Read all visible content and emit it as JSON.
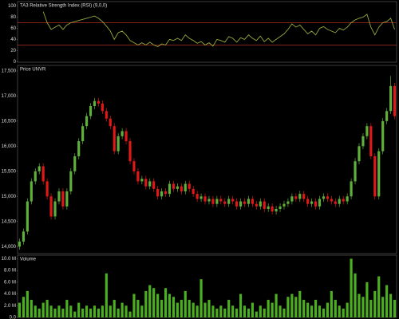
{
  "chart_data": [
    {
      "type": "line",
      "title": "TA3 Relative Strength Index (RSI) (9,0,0)",
      "color": "#9aa83a",
      "ref_color": "#b03020",
      "ylim": [
        -1,
        108
      ],
      "yticks": [
        0,
        20,
        40,
        60,
        80,
        100
      ],
      "ref_lines": [
        30,
        70
      ],
      "values": [
        null,
        null,
        null,
        null,
        null,
        null,
        90,
        70,
        58,
        62,
        66,
        58,
        66,
        70,
        72,
        74,
        76,
        78,
        80,
        82,
        78,
        72,
        64,
        55,
        40,
        52,
        55,
        48,
        38,
        34,
        30,
        34,
        30,
        35,
        30,
        27,
        32,
        30,
        40,
        38,
        42,
        38,
        48,
        42,
        38,
        33,
        36,
        30,
        34,
        28,
        40,
        38,
        35,
        45,
        42,
        35,
        43,
        40,
        48,
        42,
        38,
        46,
        36,
        42,
        35,
        40,
        45,
        50,
        58,
        68,
        62,
        66,
        58,
        50,
        55,
        48,
        60,
        63,
        58,
        55,
        52,
        60,
        57,
        62,
        70,
        75,
        78,
        80,
        85,
        62,
        48,
        62,
        70,
        72,
        78,
        58
      ]
    },
    {
      "type": "candlestick",
      "title": "Price UNVR",
      "up_color": "#5fb03a",
      "down_color": "#e01818",
      "ylim": [
        13860,
        17610
      ],
      "yticks": [
        {
          "value": 14000,
          "label": "14,000"
        },
        {
          "value": 14500,
          "label": "14,500"
        },
        {
          "value": 15000,
          "label": "15,000"
        },
        {
          "value": 15500,
          "label": "15,500"
        },
        {
          "value": 16000,
          "label": "16,000"
        },
        {
          "value": 16500,
          "label": "16,500"
        },
        {
          "value": 17000,
          "label": "17,000"
        },
        {
          "value": 17500,
          "label": "17,500"
        }
      ],
      "open": [
        14000,
        14100,
        14300,
        14900,
        15300,
        15500,
        15600,
        15300,
        15000,
        14600,
        14900,
        15100,
        14800,
        15100,
        15500,
        15800,
        16100,
        16400,
        16600,
        16800,
        16900,
        16850,
        16700,
        16550,
        16400,
        15900,
        16200,
        16300,
        16100,
        15700,
        15500,
        15300,
        15350,
        15200,
        15300,
        15150,
        15000,
        15100,
        15050,
        15250,
        15150,
        15200,
        15100,
        15250,
        15150,
        15050,
        14950,
        15000,
        14900,
        14950,
        14850,
        14950,
        14900,
        14850,
        14950,
        14900,
        14800,
        14900,
        14850,
        14950,
        14850,
        14800,
        14900,
        14750,
        14800,
        14700,
        14750,
        14800,
        14850,
        14900,
        15000,
        14950,
        15050,
        14950,
        14850,
        14900,
        14800,
        14950,
        15000,
        14950,
        14900,
        14850,
        14950,
        14900,
        15000,
        15300,
        15700,
        16000,
        16200,
        16400,
        15800,
        15000,
        15900,
        16500,
        16700,
        17200
      ],
      "high": [
        14160,
        14360,
        14960,
        15360,
        15560,
        15660,
        15660,
        15360,
        15060,
        14960,
        15160,
        15160,
        15160,
        15560,
        15860,
        16160,
        16460,
        16660,
        16860,
        16960,
        16960,
        16910,
        16760,
        16610,
        16460,
        16260,
        16360,
        16360,
        16160,
        15760,
        15560,
        15410,
        15410,
        15360,
        15360,
        15210,
        15160,
        15160,
        15310,
        15310,
        15260,
        15260,
        15310,
        15310,
        15210,
        15110,
        15060,
        15060,
        15010,
        15010,
        15010,
        15010,
        14960,
        15010,
        15010,
        14960,
        14960,
        14960,
        15010,
        15010,
        14910,
        14960,
        14960,
        14860,
        14860,
        14810,
        14860,
        14910,
        14960,
        15060,
        15060,
        15110,
        15110,
        15010,
        14960,
        14960,
        15010,
        15060,
        15060,
        15010,
        14960,
        15010,
        15010,
        15060,
        15360,
        15760,
        16060,
        16260,
        16460,
        16460,
        15860,
        15960,
        16560,
        16760,
        17400,
        17260
      ],
      "low": [
        13940,
        14040,
        14240,
        14840,
        15240,
        15440,
        15240,
        14940,
        14540,
        14540,
        14840,
        14740,
        14740,
        15040,
        15440,
        15740,
        16040,
        16340,
        16540,
        16740,
        16790,
        16640,
        16490,
        16340,
        15840,
        15840,
        16140,
        16040,
        15640,
        15440,
        15240,
        15240,
        15140,
        15140,
        15090,
        14940,
        14940,
        14990,
        14990,
        15090,
        15090,
        15040,
        15040,
        15090,
        14990,
        14890,
        14890,
        14840,
        14840,
        14790,
        14790,
        14840,
        14790,
        14790,
        14840,
        14740,
        14740,
        14790,
        14790,
        14790,
        14740,
        14740,
        14690,
        14690,
        14640,
        14640,
        14690,
        14740,
        14790,
        14840,
        14890,
        14890,
        14890,
        14790,
        14790,
        14740,
        14740,
        14890,
        14890,
        14840,
        14790,
        14790,
        14840,
        14840,
        14940,
        15240,
        15640,
        15940,
        16140,
        15740,
        14940,
        14940,
        15840,
        16440,
        16640,
        16540
      ],
      "close": [
        14100,
        14300,
        14900,
        15300,
        15500,
        15600,
        15300,
        15000,
        14600,
        14900,
        15100,
        14800,
        15100,
        15500,
        15800,
        16100,
        16400,
        16600,
        16800,
        16900,
        16850,
        16700,
        16550,
        16400,
        15900,
        16200,
        16300,
        16100,
        15700,
        15500,
        15300,
        15350,
        15200,
        15300,
        15150,
        15000,
        15100,
        15050,
        15250,
        15150,
        15200,
        15100,
        15250,
        15150,
        15050,
        14950,
        15000,
        14900,
        14950,
        14850,
        14950,
        14900,
        14850,
        14950,
        14900,
        14800,
        14900,
        14850,
        14950,
        14850,
        14800,
        14900,
        14750,
        14800,
        14700,
        14750,
        14800,
        14850,
        14900,
        15000,
        14950,
        15050,
        14950,
        14850,
        14900,
        14800,
        14950,
        15000,
        14950,
        14900,
        14850,
        14950,
        14900,
        15000,
        15300,
        15700,
        16000,
        16200,
        16400,
        15800,
        15000,
        15900,
        16500,
        16700,
        17200,
        16600
      ]
    },
    {
      "type": "bar",
      "title": "Volume",
      "color": "#4caf20",
      "ylim": [
        0,
        10.6
      ],
      "yticks": [
        {
          "value": 0,
          "label": "0.0"
        },
        {
          "value": 2,
          "label": "2.0 M"
        },
        {
          "value": 4,
          "label": "4.0 M"
        },
        {
          "value": 6,
          "label": "6.0 M"
        },
        {
          "value": 8,
          "label": "8.0 M"
        },
        {
          "value": 10,
          "label": "10.0 M"
        }
      ],
      "values": [
        2.5,
        3.5,
        4.5,
        3,
        2,
        1.5,
        2.5,
        3,
        2,
        1.5,
        2,
        1.5,
        3,
        2,
        1,
        2.5,
        1.5,
        2,
        1.5,
        2,
        1.5,
        2,
        7.5,
        2,
        3,
        1.5,
        2.5,
        2,
        1,
        4,
        3,
        2,
        4.5,
        5.5,
        5,
        4,
        3,
        5,
        4,
        3.5,
        2.5,
        3,
        4.5,
        3,
        2.5,
        2,
        6.5,
        2.5,
        3,
        2,
        1.5,
        2,
        1.5,
        3,
        2,
        1.5,
        4,
        2,
        1.5,
        2.5,
        1,
        2,
        1.5,
        3,
        2.5,
        4,
        2,
        1.5,
        3.5,
        4,
        3.5,
        4.5,
        3,
        2.5,
        2,
        3,
        2,
        1.5,
        2.5,
        4.5,
        3,
        2,
        1.5,
        2.5,
        10,
        7.5,
        4,
        3.5,
        6,
        3,
        4.5,
        7,
        3.5,
        5.5,
        4,
        3
      ]
    }
  ]
}
